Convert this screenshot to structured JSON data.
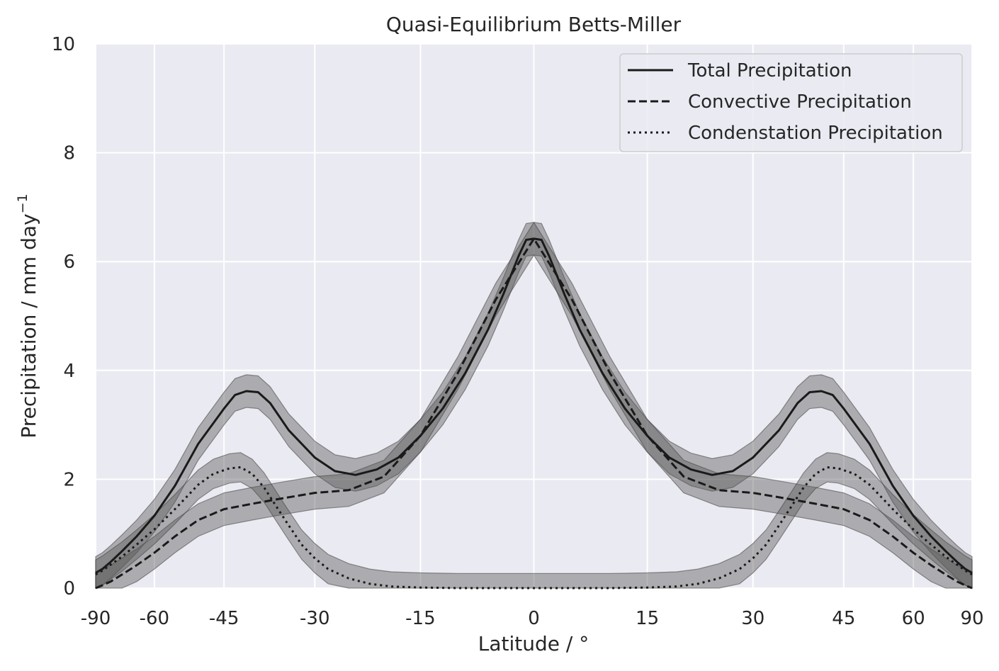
{
  "chart_data": {
    "type": "line",
    "title": "Quasi-Equilibrium Betts-Miller",
    "xlabel": "Latitude / °",
    "ylabel": "Precipitation / mm day",
    "ylabel_sup": "−1",
    "xlim": [
      -90,
      90
    ],
    "ylim": [
      0,
      10
    ],
    "x_axis_scale": "sine of latitude",
    "xticks": [
      -90,
      -60,
      -45,
      -30,
      -15,
      0,
      15,
      30,
      45,
      60,
      90
    ],
    "xtick_labels": [
      "-90",
      "-60",
      "-45",
      "-30",
      "-15",
      "0",
      "15",
      "30",
      "45",
      "60",
      "90"
    ],
    "yticks": [
      0,
      2,
      4,
      6,
      8,
      10
    ],
    "ytick_labels": [
      "0",
      "2",
      "4",
      "6",
      "8",
      "10"
    ],
    "grid": true,
    "legend_position": "top-right",
    "background_color": "#eaeaf2",
    "line_color": "#1a1a1a",
    "band_color": "#555555",
    "series": [
      {
        "name": "Total Precipitation",
        "style": "solid",
        "x": [
          -90,
          -80,
          -75,
          -70,
          -65,
          -60,
          -55,
          -50,
          -45,
          -43,
          -41,
          -39,
          -37,
          -34,
          -30,
          -27,
          -24,
          -21,
          -18,
          -15,
          -12,
          -9,
          -6,
          -4,
          -2,
          -1,
          0,
          1,
          2,
          4,
          6,
          9,
          12,
          15,
          18,
          21,
          24,
          27,
          30,
          34,
          37,
          39,
          41,
          43,
          45,
          50,
          55,
          60,
          65,
          70,
          75,
          80,
          90
        ],
        "values": [
          0.28,
          0.35,
          0.48,
          0.68,
          0.95,
          1.33,
          1.88,
          2.65,
          3.3,
          3.55,
          3.62,
          3.6,
          3.4,
          2.9,
          2.4,
          2.15,
          2.08,
          2.18,
          2.4,
          2.8,
          3.3,
          3.95,
          4.75,
          5.4,
          6.1,
          6.4,
          6.42,
          6.4,
          6.1,
          5.4,
          4.75,
          3.95,
          3.3,
          2.8,
          2.4,
          2.18,
          2.08,
          2.15,
          2.4,
          2.9,
          3.4,
          3.6,
          3.62,
          3.55,
          3.3,
          2.65,
          1.88,
          1.33,
          0.95,
          0.68,
          0.48,
          0.35,
          0.28
        ],
        "band_halfwidth": 0.3
      },
      {
        "name": "Convective Precipitation",
        "style": "dashed",
        "x": [
          -90,
          -80,
          -75,
          -70,
          -65,
          -60,
          -55,
          -50,
          -45,
          -40,
          -35,
          -30,
          -25,
          -20,
          -15,
          -10,
          -5,
          0,
          5,
          10,
          15,
          20,
          25,
          30,
          35,
          40,
          45,
          50,
          55,
          60,
          65,
          70,
          75,
          80,
          90
        ],
        "values": [
          0.0,
          0.05,
          0.12,
          0.25,
          0.42,
          0.65,
          0.95,
          1.25,
          1.45,
          1.55,
          1.65,
          1.75,
          1.8,
          2.05,
          2.8,
          3.95,
          5.3,
          6.42,
          5.3,
          3.95,
          2.8,
          2.05,
          1.8,
          1.75,
          1.65,
          1.55,
          1.45,
          1.25,
          0.95,
          0.65,
          0.42,
          0.25,
          0.12,
          0.05,
          0.0
        ],
        "band_halfwidth": 0.3
      },
      {
        "name": "Condenstation Precipitation",
        "style": "dotted",
        "x": [
          -90,
          -80,
          -75,
          -70,
          -65,
          -60,
          -55,
          -50,
          -47,
          -44,
          -42,
          -40,
          -38,
          -36,
          -34,
          -32,
          -30,
          -28,
          -25,
          -22,
          -19,
          -15,
          -10,
          0,
          10,
          15,
          19,
          22,
          25,
          28,
          30,
          32,
          34,
          36,
          38,
          40,
          42,
          44,
          47,
          50,
          55,
          60,
          65,
          70,
          75,
          80,
          90
        ],
        "values": [
          0.25,
          0.32,
          0.43,
          0.58,
          0.8,
          1.08,
          1.45,
          1.9,
          2.1,
          2.2,
          2.22,
          2.1,
          1.85,
          1.5,
          1.15,
          0.8,
          0.55,
          0.35,
          0.18,
          0.08,
          0.03,
          0.01,
          0.0,
          0.0,
          0.0,
          0.01,
          0.03,
          0.08,
          0.18,
          0.35,
          0.55,
          0.8,
          1.15,
          1.5,
          1.85,
          2.1,
          2.22,
          2.2,
          2.1,
          1.9,
          1.45,
          1.08,
          0.8,
          0.58,
          0.43,
          0.32,
          0.25
        ],
        "band_halfwidth": 0.27
      }
    ]
  }
}
